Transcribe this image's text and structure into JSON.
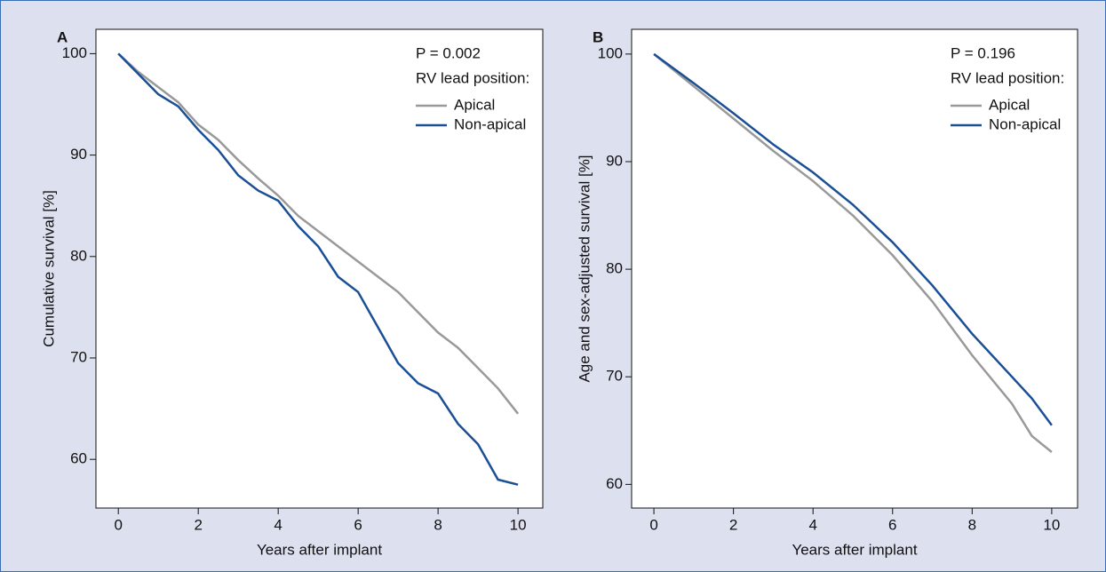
{
  "chart_data": [
    {
      "type": "line",
      "panel_label": "A",
      "annotation": "P = 0.002",
      "legend_title": "RV lead position:",
      "x_label": "Years after implant",
      "y_label": "Cumulative survival [%]",
      "x": [
        0,
        0.5,
        1,
        1.5,
        2,
        2.5,
        3,
        3.5,
        4,
        4.5,
        5,
        5.5,
        6,
        6.5,
        7,
        7.5,
        8,
        8.5,
        9,
        9.5,
        10
      ],
      "series": [
        {
          "name": "Apical",
          "color": "#999999",
          "values": [
            100,
            98.2,
            96.7,
            95.2,
            93,
            91.5,
            89.5,
            87.7,
            86,
            84,
            82.5,
            81,
            79.5,
            78,
            76.5,
            74.5,
            72.5,
            71,
            69,
            67,
            64.5
          ]
        },
        {
          "name": "Non-apical",
          "color": "#1a4f96",
          "values": [
            100,
            98,
            96,
            94.8,
            92.5,
            90.5,
            88,
            86.5,
            85.5,
            83,
            81,
            78,
            76.5,
            73,
            69.5,
            67.5,
            66.5,
            63.5,
            61.5,
            58,
            57.5
          ]
        }
      ],
      "xlim": [
        -0.56,
        10.62
      ],
      "ylim": [
        55.2,
        102.4
      ],
      "xticks": [
        0,
        2,
        4,
        6,
        8,
        10
      ],
      "yticks": [
        60,
        70,
        80,
        90,
        100
      ]
    },
    {
      "type": "line",
      "panel_label": "B",
      "annotation": "P = 0.196",
      "legend_title": "RV lead position:",
      "x_label": "Years after implant",
      "y_label": "Age and sex-adjusted survival [%]",
      "x": [
        0,
        1,
        2,
        3,
        4,
        5,
        6,
        7,
        8,
        9,
        9.5,
        10
      ],
      "series": [
        {
          "name": "Apical",
          "color": "#999999",
          "values": [
            100,
            97,
            94,
            91,
            88.2,
            85,
            81.3,
            77,
            72,
            67.5,
            64.5,
            63
          ]
        },
        {
          "name": "Non-apical",
          "color": "#1a4f96",
          "values": [
            100,
            97.3,
            94.5,
            91.6,
            89,
            86,
            82.5,
            78.5,
            74,
            70,
            68,
            65.5
          ]
        }
      ],
      "xlim": [
        -0.56,
        10.65
      ],
      "ylim": [
        57.8,
        102.3
      ],
      "xticks": [
        0,
        2,
        4,
        6,
        8,
        10
      ],
      "yticks": [
        60,
        70,
        80,
        90,
        100
      ]
    }
  ]
}
